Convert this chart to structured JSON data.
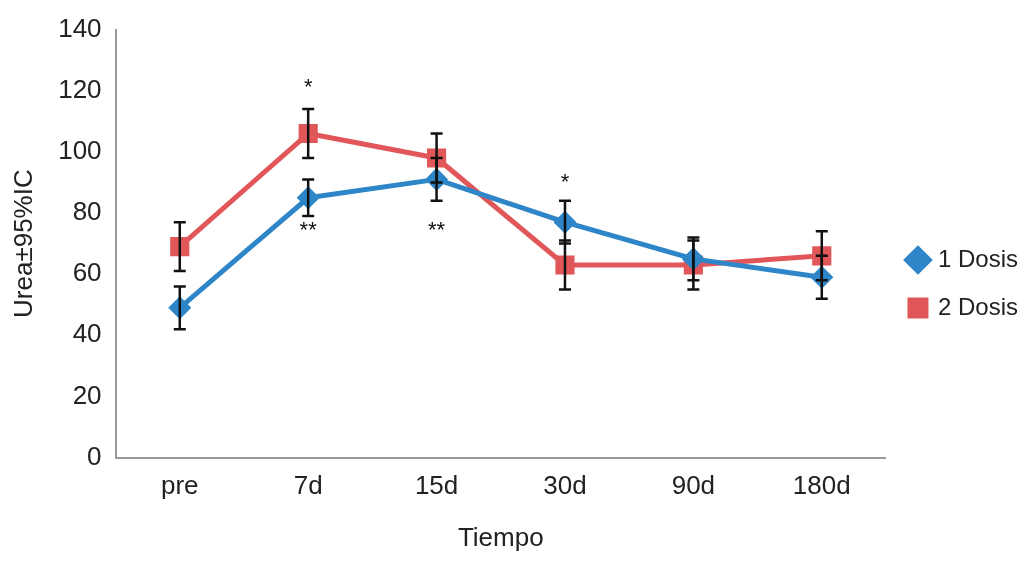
{
  "chart_data": {
    "type": "line",
    "xlabel": "Tiempo",
    "ylabel": "Urea±95%IC",
    "categories": [
      "pre",
      "7d",
      "15d",
      "30d",
      "90d",
      "180d"
    ],
    "series": [
      {
        "name": "1 Dosis",
        "color": "#2e86c8",
        "marker": "diamond",
        "values": [
          49,
          85,
          91,
          77,
          65,
          59
        ],
        "errors": [
          7,
          6,
          7,
          7,
          7,
          7
        ]
      },
      {
        "name": "2 Dosis",
        "color": "#e15759",
        "marker": "square",
        "values": [
          69,
          106,
          98,
          63,
          63,
          66
        ],
        "errors": [
          8,
          8,
          8,
          8,
          8,
          8
        ]
      }
    ],
    "ylim": [
      0,
      140
    ],
    "yticks": [
      0,
      20,
      40,
      60,
      80,
      100,
      120,
      140
    ],
    "grid": false,
    "legend": "right",
    "annotations": [
      "*",
      "**",
      "**",
      "*"
    ]
  }
}
